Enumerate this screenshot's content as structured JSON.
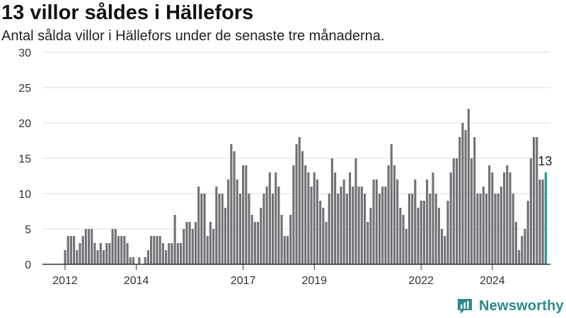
{
  "header": {
    "title": "13 villor såldes i Hällefors",
    "subtitle": "Antal sålda villor i Hällefors under de senaste tre månaderna."
  },
  "brand": {
    "name": "Newsworthy",
    "icon": "newsworthy-logo-icon",
    "color": "#2b8a8a"
  },
  "colors": {
    "bar": "#717075",
    "highlight": "#1a9a8f",
    "grid": "#dddddd",
    "axis": "#333333"
  },
  "chart_data": {
    "type": "bar",
    "title": "13 villor såldes i Hällefors",
    "subtitle": "Antal sålda villor i Hällefors under de senaste tre månaderna.",
    "ylim": [
      0,
      30
    ],
    "yticks": [
      "0",
      "5",
      "10",
      "15",
      "20",
      "25",
      "30"
    ],
    "xtick_labels": [
      "2012",
      "2014",
      "2017",
      "2019",
      "2022",
      "2024"
    ],
    "xtick_years": [
      2012,
      2014,
      2017,
      2019,
      2022,
      2024
    ],
    "first_month": "2012-01",
    "values": [
      2,
      4,
      4,
      4,
      2,
      3,
      4,
      5,
      5,
      5,
      3,
      2,
      3,
      2,
      3,
      3,
      5,
      5,
      4,
      4,
      4,
      3,
      1,
      1,
      0,
      1,
      0,
      1,
      2,
      4,
      4,
      4,
      4,
      3,
      2,
      3,
      3,
      7,
      3,
      3,
      5,
      6,
      6,
      5,
      6,
      11,
      10,
      10,
      4,
      6,
      5,
      11,
      10,
      10,
      8,
      12,
      17,
      16,
      12,
      10,
      14,
      14,
      10,
      7,
      6,
      6,
      8,
      10,
      11,
      13,
      10,
      13,
      11,
      7,
      4,
      4,
      7,
      14,
      17,
      18,
      16,
      14,
      13,
      11,
      13,
      12,
      9,
      8,
      6,
      10,
      15,
      13,
      10,
      11,
      12,
      10,
      13,
      11,
      15,
      11,
      11,
      10,
      6,
      8,
      12,
      12,
      10,
      11,
      11,
      14,
      17,
      14,
      12,
      8,
      7,
      5,
      10,
      10,
      12,
      8,
      9,
      9,
      12,
      10,
      13,
      10,
      8,
      5,
      4,
      9,
      13,
      15,
      15,
      18,
      20,
      19,
      22,
      15,
      18,
      10,
      10,
      11,
      10,
      14,
      13,
      10,
      10,
      11,
      13,
      14,
      13,
      10,
      6,
      2,
      4,
      5,
      9,
      15,
      18,
      18,
      12,
      12,
      13
    ],
    "highlight": {
      "index": 162,
      "label": "13"
    },
    "grid": true,
    "legend": "none"
  }
}
